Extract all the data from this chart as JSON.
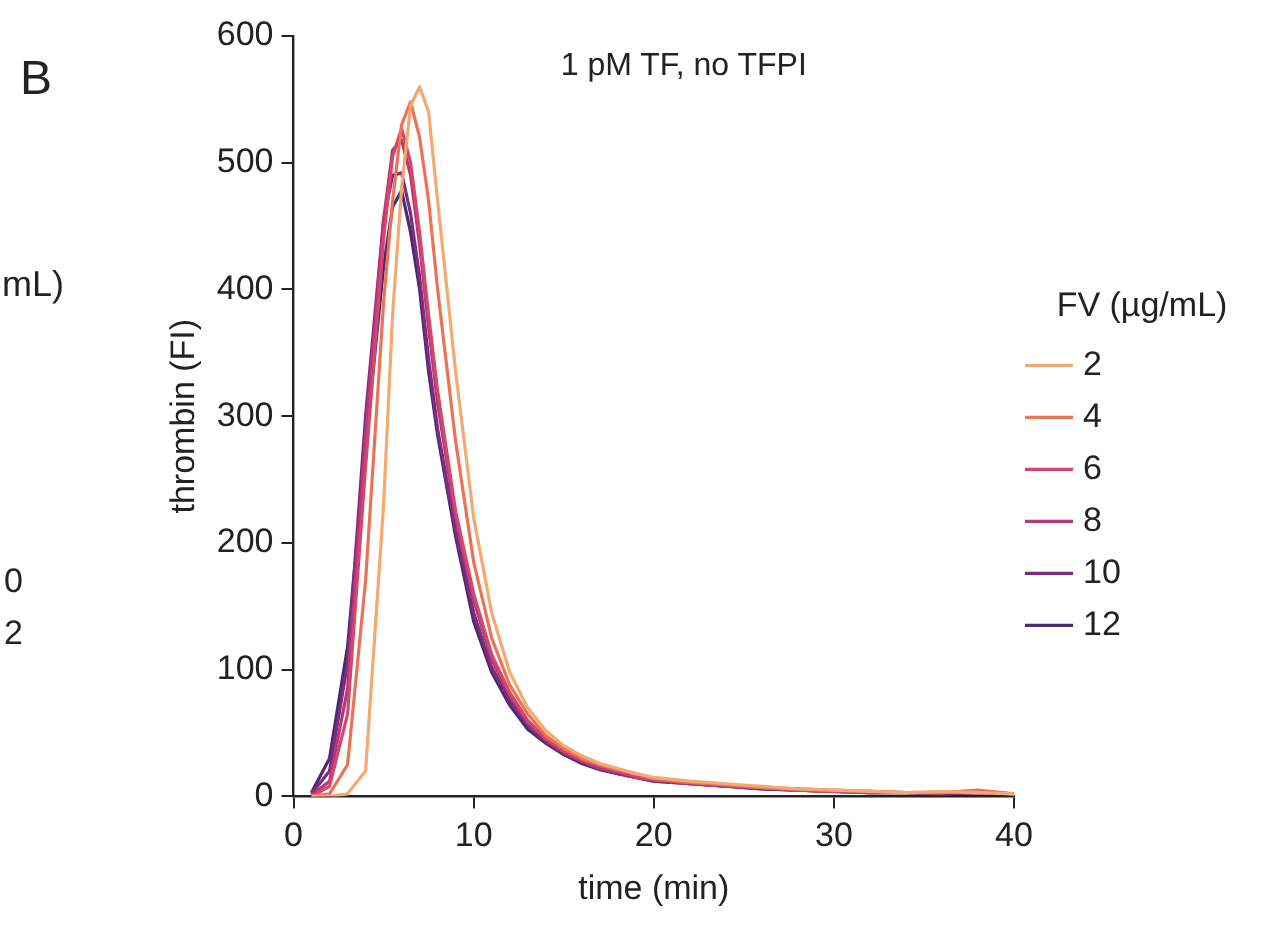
{
  "chart_data": {
    "type": "line",
    "title": "1 pM TF, no TFPI",
    "xlabel": "time (min)",
    "ylabel": "thrombin (FI)",
    "legend_title": "FV (µg/mL)",
    "annotations": [
      "B",
      "mL)",
      "0",
      "2"
    ],
    "x": [
      1,
      2,
      3,
      4,
      5,
      5.5,
      6,
      6.5,
      7,
      7.5,
      8,
      9,
      10,
      11,
      12,
      13,
      14,
      15,
      16,
      17,
      18,
      19,
      20,
      22,
      24,
      26,
      28,
      30,
      32,
      34,
      36,
      38,
      40
    ],
    "series": [
      {
        "name": "2",
        "color": "#f3a96f",
        "values": [
          0,
          0,
          2,
          20,
          230,
          380,
          480,
          545,
          560,
          540,
          470,
          335,
          220,
          145,
          98,
          70,
          52,
          40,
          32,
          26,
          22,
          18,
          15,
          12,
          10,
          8,
          6,
          5,
          4,
          3,
          4,
          3,
          2
        ]
      },
      {
        "name": "4",
        "color": "#ec7256",
        "values": [
          0,
          2,
          25,
          170,
          390,
          470,
          530,
          548,
          520,
          470,
          400,
          280,
          185,
          125,
          88,
          65,
          48,
          38,
          30,
          25,
          21,
          18,
          14,
          11,
          9,
          7,
          6,
          5,
          4,
          3,
          3,
          5,
          2
        ]
      },
      {
        "name": "6",
        "color": "#d8456c",
        "values": [
          0,
          8,
          65,
          260,
          440,
          505,
          527,
          500,
          445,
          380,
          320,
          225,
          160,
          112,
          82,
          60,
          46,
          36,
          29,
          24,
          20,
          16,
          13,
          11,
          9,
          7,
          5,
          4,
          4,
          3,
          3,
          3,
          2
        ]
      },
      {
        "name": "8",
        "color": "#b03a7a",
        "values": [
          1,
          12,
          85,
          285,
          455,
          510,
          518,
          490,
          435,
          370,
          310,
          220,
          155,
          108,
          80,
          58,
          45,
          35,
          28,
          22,
          19,
          15,
          13,
          10,
          8,
          7,
          5,
          4,
          3,
          3,
          3,
          4,
          2
        ]
      },
      {
        "name": "10",
        "color": "#7d2d80",
        "values": [
          2,
          20,
          105,
          300,
          455,
          490,
          492,
          460,
          410,
          345,
          290,
          210,
          145,
          102,
          76,
          56,
          43,
          34,
          27,
          22,
          18,
          15,
          12,
          10,
          8,
          6,
          5,
          4,
          3,
          3,
          2,
          3,
          2
        ]
      },
      {
        "name": "12",
        "color": "#4b2a6e",
        "values": [
          3,
          30,
          118,
          276,
          418,
          465,
          478,
          445,
          400,
          335,
          285,
          205,
          138,
          98,
          72,
          53,
          42,
          33,
          26,
          21,
          18,
          15,
          12,
          10,
          8,
          6,
          5,
          4,
          3,
          3,
          2,
          3,
          2
        ]
      }
    ],
    "xlim": [
      0,
      40
    ],
    "xticks": [
      0,
      10,
      20,
      30,
      40
    ],
    "ylim": [
      0,
      600
    ],
    "yticks": [
      0,
      100,
      200,
      300,
      400,
      500,
      600
    ],
    "grid": false,
    "legend": "right",
    "marker": "none",
    "line_style": "solid"
  }
}
